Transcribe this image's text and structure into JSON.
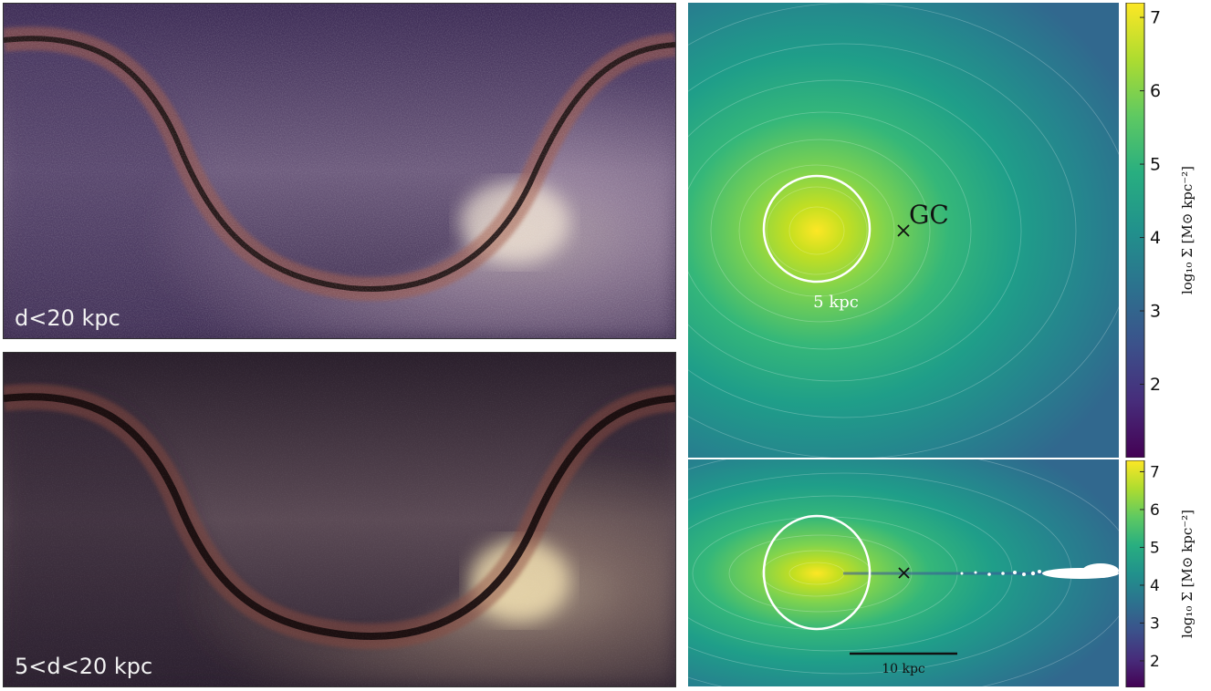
{
  "chart_data": [
    {
      "type": "heatmap",
      "panel": "top-left",
      "label": "d<20 kpc"
    },
    {
      "type": "heatmap",
      "panel": "bottom-left",
      "label": "5<d<20 kpc"
    },
    {
      "type": "heatmap",
      "panel": "top-right",
      "annotations": [
        "GC",
        "5 kpc"
      ],
      "colorbar": {
        "label": "log₁₀ Σ [M⊙ kpc⁻²]",
        "ticks": [
          2,
          3,
          4,
          5,
          6,
          7
        ],
        "range": [
          1.0,
          7.2
        ]
      }
    },
    {
      "type": "heatmap",
      "panel": "bottom-right",
      "annotations": [
        "10 kpc"
      ],
      "colorbar": {
        "label": "log₁₀ Σ [M⊙ kpc⁻²]",
        "ticks": [
          2,
          3,
          4,
          5,
          6,
          7
        ],
        "range": [
          1.3,
          7.3
        ]
      }
    }
  ],
  "colors": {
    "viridis": [
      "#440154",
      "#472d7b",
      "#3b528b",
      "#2c728e",
      "#21918c",
      "#28ae80",
      "#5ec962",
      "#addc30",
      "#fde725"
    ],
    "sky_background": "#3a2a4a",
    "dust_lane": "#1b0f10"
  }
}
